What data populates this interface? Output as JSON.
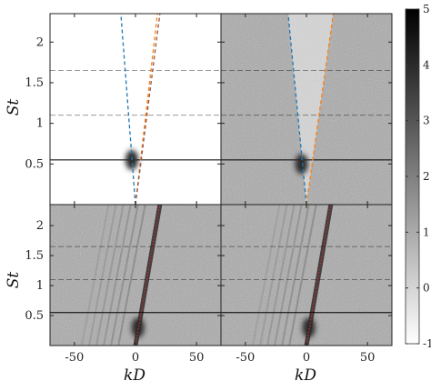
{
  "chart_data": {
    "type": "heatmap",
    "layout": "2x2 grid with shared colorbar",
    "xlabel": "kD",
    "ylabel": "St",
    "xlim": [
      -70,
      70
    ],
    "ylim": [
      0,
      2.35
    ],
    "xticks": [
      -50,
      0,
      50
    ],
    "xtick_labels": [
      "-50",
      "0",
      "50"
    ],
    "yticks": [
      0.5,
      1,
      1.5,
      2
    ],
    "ytick_labels": [
      "0.5",
      "1",
      "1.5",
      "2"
    ],
    "colormap": "grayscale (white = -1, black = 5)",
    "colorbar": {
      "range": [
        -1,
        5
      ],
      "ticks": [
        -1,
        0,
        1,
        2,
        3,
        4,
        5
      ],
      "tick_labels": [
        "-1",
        "0",
        "1",
        "2",
        "3",
        "4",
        "5"
      ]
    },
    "panels": [
      {
        "position": "top-left",
        "background_level": -1,
        "ridges": [
          {
            "from": [
              -12,
              2.35
            ],
            "to": [
              0,
              0
            ],
            "style": "dashed",
            "color": "#1f77b4"
          },
          {
            "from": [
              18,
              2.35
            ],
            "to": [
              0,
              0
            ],
            "style": "dashed",
            "color": "#ff7f0e"
          },
          {
            "from": [
              20,
              2.35
            ],
            "to": [
              0,
              0
            ],
            "style": "dashed",
            "color": "#8c564b"
          }
        ],
        "horizontal_lines_st": [
          0.55,
          1.1,
          1.65
        ],
        "hotspots": [
          {
            "x": -3,
            "y": 0.55,
            "level": 4
          }
        ]
      },
      {
        "position": "top-right",
        "background_level": 1,
        "ridges": [
          {
            "from": [
              -15,
              2.35
            ],
            "to": [
              0,
              0
            ],
            "style": "dashed",
            "color": "#1f77b4"
          },
          {
            "from": [
              22,
              2.35
            ],
            "to": [
              0,
              0
            ],
            "style": "dashed",
            "color": "#ff7f0e"
          }
        ],
        "horizontal_lines_st": [
          0.55,
          1.1,
          1.65
        ],
        "hotspots": [
          {
            "x": -4,
            "y": 0.5,
            "level": 4
          }
        ]
      },
      {
        "position": "bottom-left",
        "background_level": 1,
        "ridges": [
          {
            "from": [
              20,
              2.35
            ],
            "to": [
              0,
              0
            ],
            "style": "dotted",
            "color": "#d62728"
          }
        ],
        "horizontal_lines_st": [
          0.55,
          1.1,
          1.65
        ],
        "hotspots": [
          {
            "x": 2,
            "y": 0.3,
            "level": 4
          }
        ]
      },
      {
        "position": "bottom-right",
        "background_level": 1,
        "ridges": [
          {
            "from": [
              20,
              2.35
            ],
            "to": [
              0,
              0
            ],
            "style": "dotted",
            "color": "#d62728"
          }
        ],
        "horizontal_lines_st": [
          0.55,
          1.1,
          1.65
        ],
        "hotspots": [
          {
            "x": 2,
            "y": 0.3,
            "level": 4
          }
        ]
      }
    ]
  }
}
